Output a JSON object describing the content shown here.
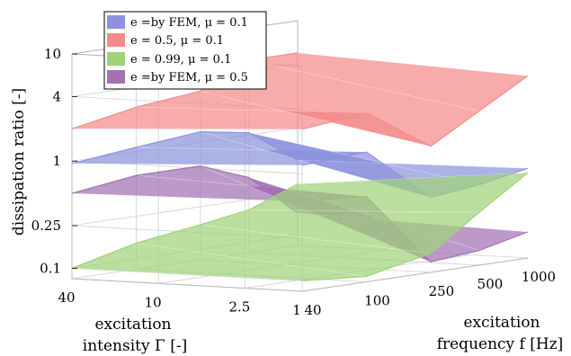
{
  "chart_data": {
    "type": "surface",
    "zlabel": "dissipation ratio [-]",
    "xlabel": [
      "excitation",
      "frequency f [Hz]"
    ],
    "ylabel": [
      "excitation",
      "intensity Γ [-]"
    ],
    "z_ticks": [
      "0.1",
      "0.25",
      "1",
      "4",
      "10"
    ],
    "z_tick_values": [
      0.1,
      0.25,
      1,
      4,
      10
    ],
    "zlim": [
      0.08,
      10
    ],
    "z_scale": "log",
    "f_ticks": [
      "40",
      "100",
      "250",
      "500",
      "1000"
    ],
    "f_tick_values": [
      40,
      100,
      250,
      500,
      1000
    ],
    "f_scale": "log",
    "gamma_ticks": [
      "40",
      "10",
      "2.5",
      "1"
    ],
    "gamma_tick_values": [
      40,
      10,
      2.5,
      1
    ],
    "gamma_scale": "log",
    "grid": true,
    "legend_position": "top-left",
    "legend": [
      {
        "name": "e =by FEM, μ = 0.1",
        "color": "#8c93dc"
      },
      {
        "name": "e = 0.5, μ = 0.1",
        "color": "#f48a8a"
      },
      {
        "name": "e = 0.99, μ = 0.1",
        "color": "#9fd27a"
      },
      {
        "name": "e =by FEM, μ = 0.5",
        "color": "#a272b4"
      }
    ],
    "series": [
      {
        "name": "e =by FEM, μ = 0.1",
        "color": "#8c93dc",
        "gamma": [
          40,
          1
        ],
        "f": [
          40,
          100,
          250,
          500,
          1000
        ],
        "values": [
          [
            0.95,
            1.1,
            1.25,
            1.05,
            0.5
          ],
          [
            1.2,
            1.3,
            0.4,
            0.45,
            0.55
          ]
        ]
      },
      {
        "name": "e = 0.5, μ = 0.1",
        "color": "#f48a8a",
        "gamma": [
          40,
          1
        ],
        "f": [
          40,
          100,
          250,
          500,
          1000
        ],
        "values": [
          [
            2.0,
            2.6,
            3.0,
            5.0,
            5.0
          ],
          [
            2.6,
            3.0,
            1.2,
            2.2,
            4.0
          ]
        ]
      },
      {
        "name": "e = 0.99, μ = 0.1",
        "color": "#9fd27a",
        "gamma": [
          40,
          1
        ],
        "f": [
          40,
          100,
          250,
          500,
          1000
        ],
        "values": [
          [
            0.1,
            0.14,
            0.17,
            0.2,
            0.3
          ],
          [
            0.1,
            0.09,
            0.12,
            0.25,
            0.5
          ]
        ]
      },
      {
        "name": "e =by FEM, μ = 0.5",
        "color": "#a272b4",
        "gamma": [
          40,
          1
        ],
        "f": [
          40,
          100,
          250,
          500,
          1000
        ],
        "values": [
          [
            0.5,
            0.6,
            0.6,
            0.4,
            0.16
          ],
          [
            0.55,
            0.5,
            0.1,
            0.11,
            0.14
          ]
        ]
      }
    ]
  }
}
